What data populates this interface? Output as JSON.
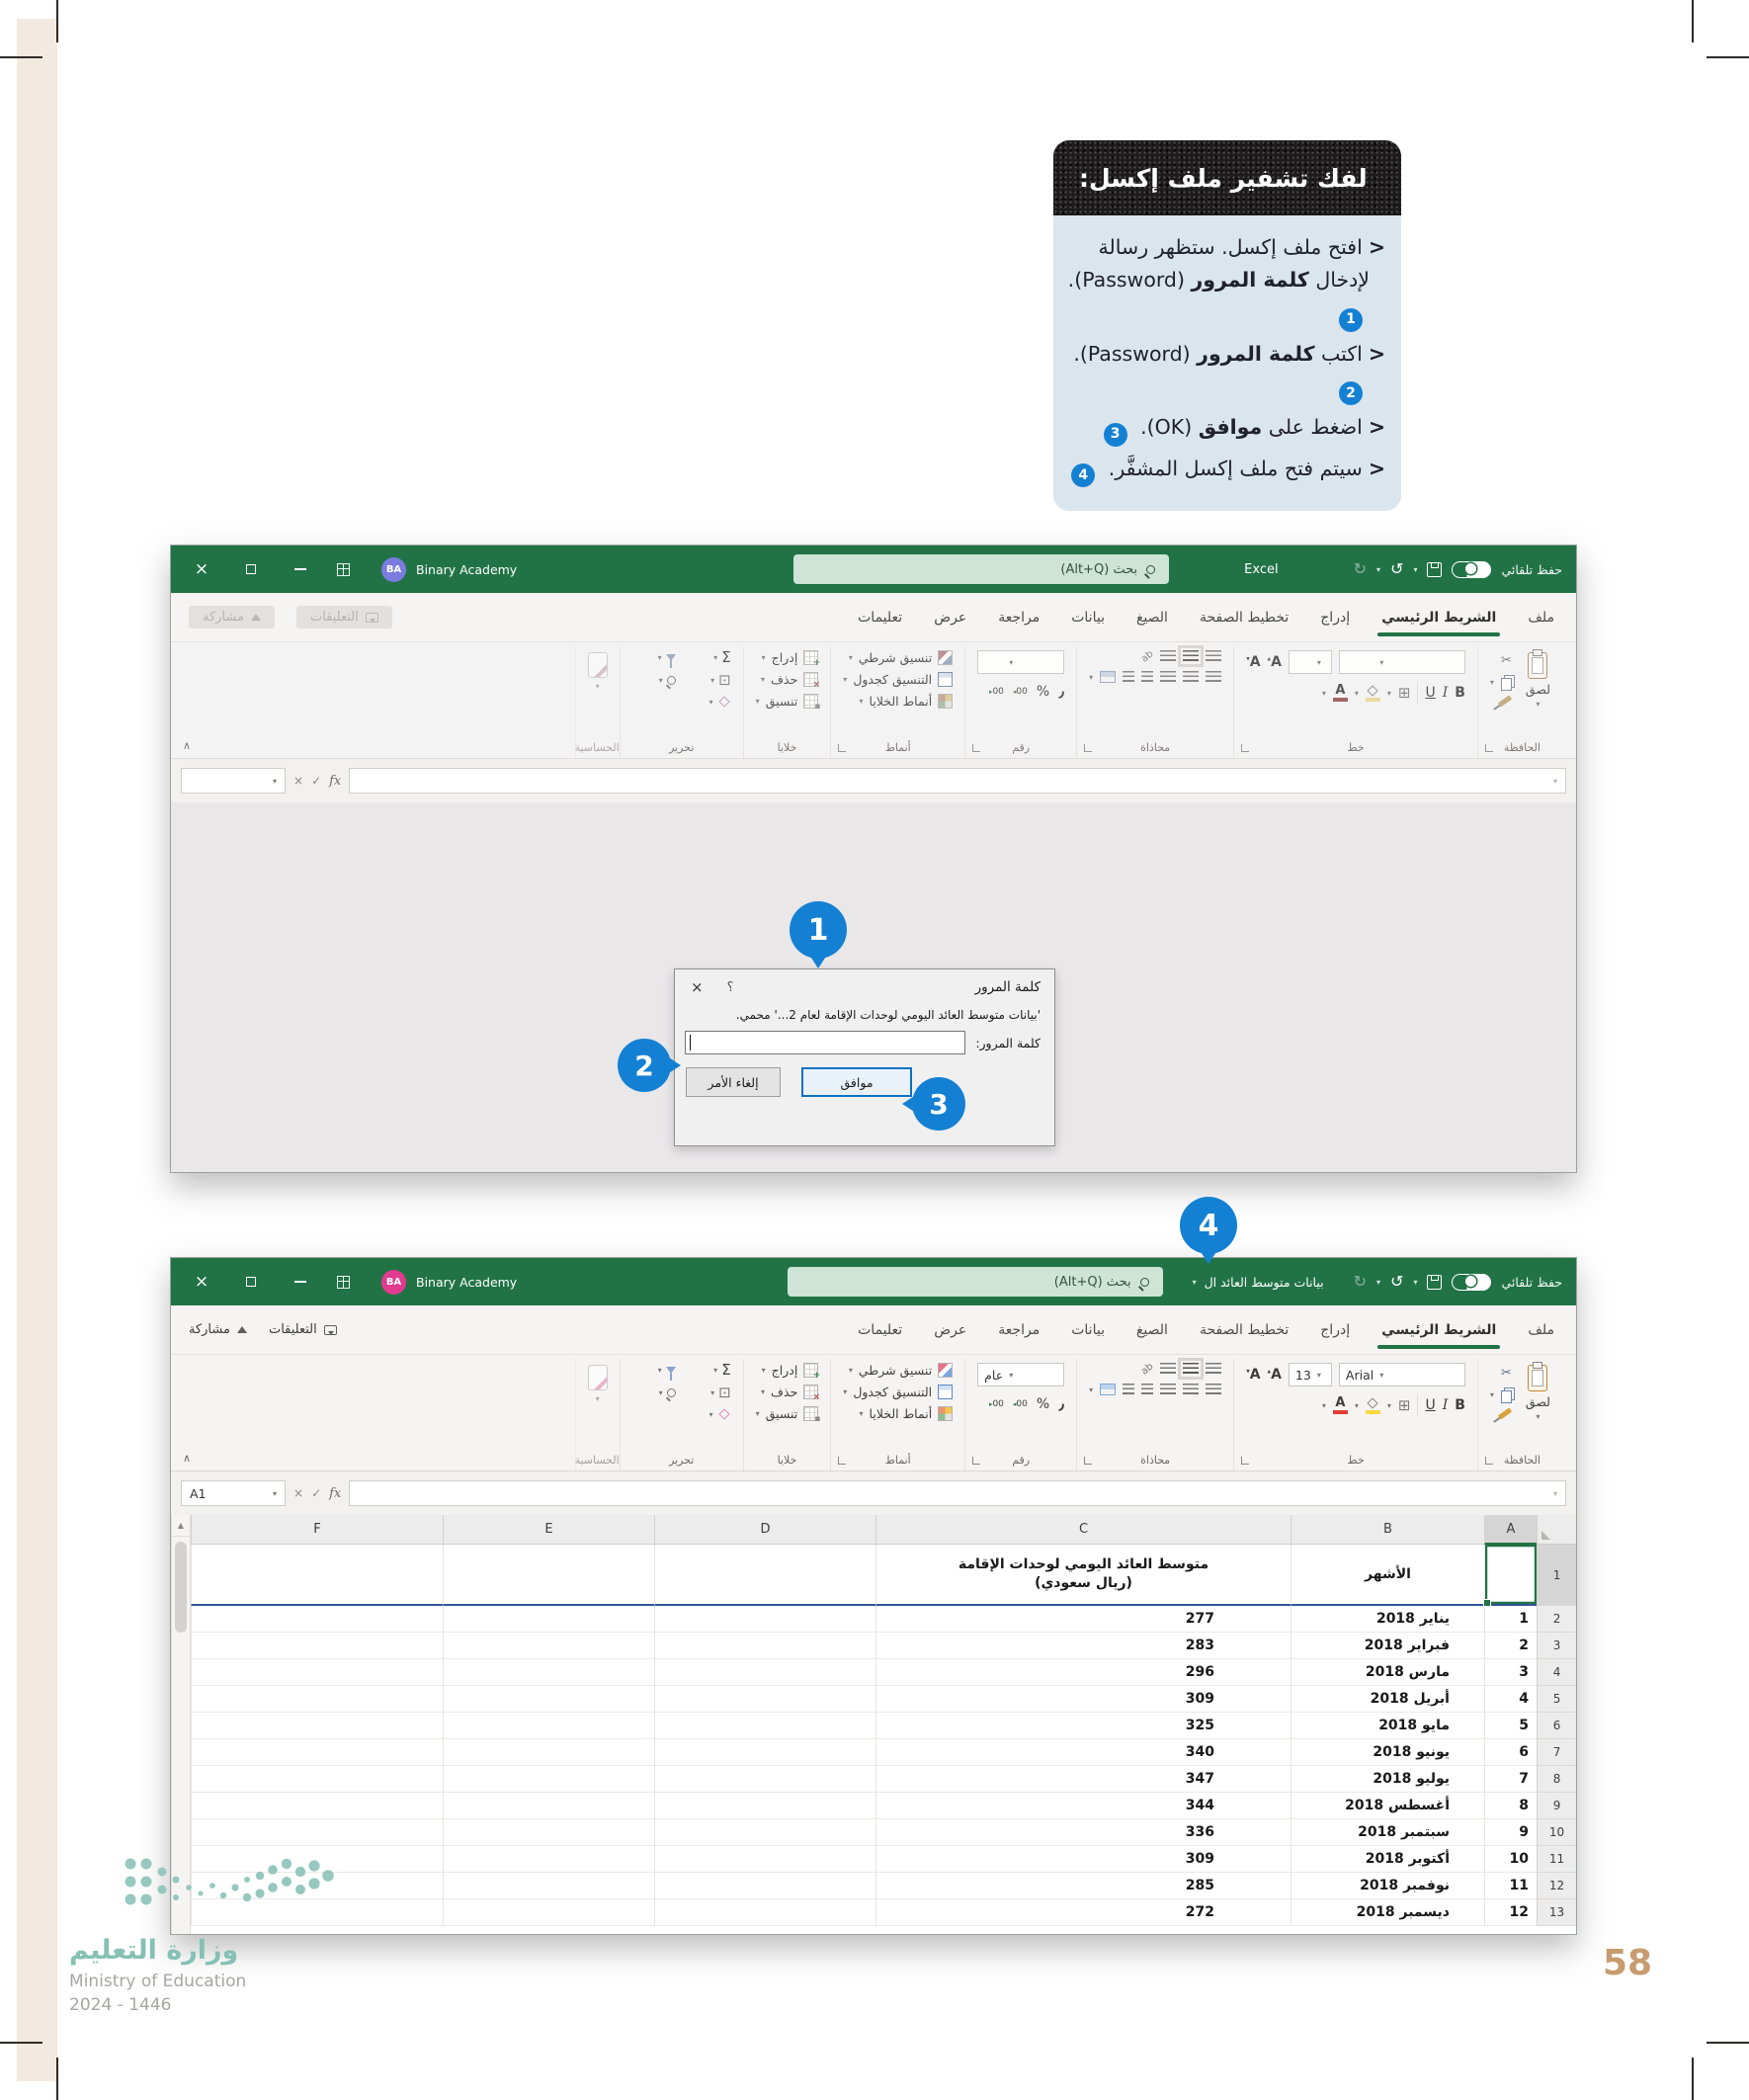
{
  "page": {
    "number": "58"
  },
  "logo": {
    "ar": "وزارة التعليم",
    "en": "Ministry of Education",
    "years": "2024 - 1446"
  },
  "infobox": {
    "title": "لفك تشفير ملف إكسل:",
    "bullets": [
      {
        "pre": "افتح ملف إكسل. ستظهر رسالة لإدخال ",
        "bold": "كلمة المرور",
        "post": " (Password).",
        "num": "1"
      },
      {
        "pre": "اكتب ",
        "bold": "كلمة المرور",
        "post": " (Password).",
        "num": "2"
      },
      {
        "pre": "اضغط على ",
        "bold": "موافق",
        "post": " (OK).",
        "num": "3"
      },
      {
        "pre": "سيتم فتح ملف إكسل المشفَّر.",
        "bold": "",
        "post": "",
        "num": "4"
      }
    ]
  },
  "titlebar": {
    "app": "Excel",
    "file": "بيانات متوسط العائد ال",
    "account": "Binary Academy",
    "initials": "BA",
    "search": "بحث (Alt+Q)",
    "autosave": "حفظ تلقائي"
  },
  "tabs": [
    "ملف",
    "الشريط الرئيسي",
    "إدراج",
    "تخطيط الصفحة",
    "الصيغ",
    "بيانات",
    "مراجعة",
    "عرض",
    "تعليمات"
  ],
  "tab_actions": {
    "comments": "التعليقات",
    "share": "مشاركة"
  },
  "ribbon": {
    "groups": {
      "clipboard": "الحافظة",
      "font": "خط",
      "alignment": "محاذاة",
      "number": "رقم",
      "styles": "أنماط",
      "cells": "خلايا",
      "editing": "تحرير",
      "sensitivity": "الحساسية"
    },
    "paste": "لصق",
    "font_name": "Arial",
    "font_size": "13",
    "number_format": "عام",
    "styles_items": [
      "تنسيق شرطي",
      "التنسيق كجدول",
      "أنماط الخلايا"
    ],
    "cells_items": [
      "إدراج",
      "حذف",
      "تنسيق"
    ]
  },
  "formula": {
    "name_box": "A1"
  },
  "dialog": {
    "title": "كلمة المرور",
    "message": "'بيانات متوسط العائد اليومي لوحدات الإقامة لعام 2...' محمي.",
    "password_label": "كلمة المرور:",
    "help": "؟",
    "ok": "موافق",
    "cancel": "إلغاء الأمر"
  },
  "sheet": {
    "columns": [
      "A",
      "B",
      "C",
      "D",
      "E",
      "F"
    ],
    "header": {
      "months": "الأشهر",
      "value_line1": "متوسط العائد اليومي لوحدات الإقامة",
      "value_line2": "(ريال سعودي)"
    },
    "rows": [
      {
        "n": "1",
        "month": "يناير 2018",
        "value": "277"
      },
      {
        "n": "2",
        "month": "فبراير 2018",
        "value": "283"
      },
      {
        "n": "3",
        "month": "مارس 2018",
        "value": "296"
      },
      {
        "n": "4",
        "month": "أبريل 2018",
        "value": "309"
      },
      {
        "n": "5",
        "month": "مايو 2018",
        "value": "325"
      },
      {
        "n": "6",
        "month": "يونيو 2018",
        "value": "340"
      },
      {
        "n": "7",
        "month": "يوليو 2018",
        "value": "347"
      },
      {
        "n": "8",
        "month": "أغسطس 2018",
        "value": "344"
      },
      {
        "n": "9",
        "month": "سبتمبر 2018",
        "value": "336"
      },
      {
        "n": "10",
        "month": "أكتوبر 2018",
        "value": "309"
      },
      {
        "n": "11",
        "month": "نوفمبر 2018",
        "value": "285"
      },
      {
        "n": "12",
        "month": "ديسمبر 2018",
        "value": "272"
      }
    ]
  },
  "callouts": {
    "c1": "1",
    "c2": "2",
    "c3": "3",
    "c4": "4"
  },
  "colors": {
    "excel_green": "#217346",
    "callout_blue": "#1480d3",
    "info_body": "#dbe5ee",
    "header_underline": "#2f5597",
    "page_number": "#c79c6f",
    "logo_teal": "#85c0b5"
  }
}
